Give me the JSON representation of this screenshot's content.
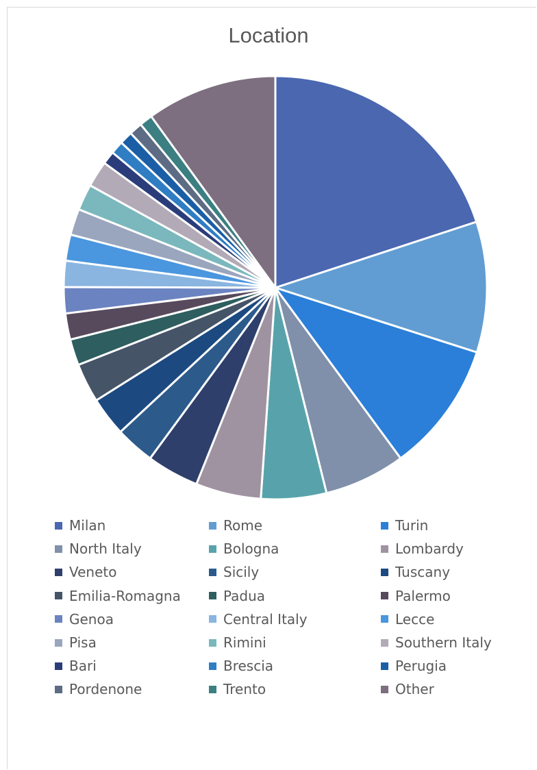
{
  "chart_data": {
    "type": "pie",
    "title": "Location",
    "legend_position": "bottom",
    "slices": [
      {
        "label": "Milan",
        "value": 20.0,
        "color": "#4a67b0"
      },
      {
        "label": "Rome",
        "value": 10.0,
        "color": "#619dd2"
      },
      {
        "label": "Turin",
        "value": 10.0,
        "color": "#2b7fd8"
      },
      {
        "label": "North Italy",
        "value": 6.2,
        "color": "#8090aa"
      },
      {
        "label": "Bologna",
        "value": 5.0,
        "color": "#58a3ab"
      },
      {
        "label": "Lombardy",
        "value": 5.0,
        "color": "#a093a1"
      },
      {
        "label": "Veneto",
        "value": 4.0,
        "color": "#2f3f6b"
      },
      {
        "label": "Sicily",
        "value": 3.0,
        "color": "#2c5b8b"
      },
      {
        "label": "Tuscany",
        "value": 3.0,
        "color": "#1c4a80"
      },
      {
        "label": "Emilia-Romagna",
        "value": 3.0,
        "color": "#465468"
      },
      {
        "label": "Padua",
        "value": 2.0,
        "color": "#2e5e60"
      },
      {
        "label": "Palermo",
        "value": 2.0,
        "color": "#574a5d"
      },
      {
        "label": "Genoa",
        "value": 2.0,
        "color": "#6b83c1"
      },
      {
        "label": "Central Italy",
        "value": 2.0,
        "color": "#89b5e0"
      },
      {
        "label": "Lecce",
        "value": 2.0,
        "color": "#4a96df"
      },
      {
        "label": "Pisa",
        "value": 2.0,
        "color": "#9aa6be"
      },
      {
        "label": "Rimini",
        "value": 2.0,
        "color": "#7ab8bd"
      },
      {
        "label": "Southern Italy",
        "value": 2.0,
        "color": "#b3aab7"
      },
      {
        "label": "Bari",
        "value": 1.0,
        "color": "#2a3d7a"
      },
      {
        "label": "Brescia",
        "value": 1.0,
        "color": "#2f7dc3"
      },
      {
        "label": "Perugia",
        "value": 1.0,
        "color": "#1a5fa6"
      },
      {
        "label": "Pordenone",
        "value": 1.0,
        "color": "#5d6b84"
      },
      {
        "label": "Trento",
        "value": 1.0,
        "color": "#3b7f82"
      },
      {
        "label": "Other",
        "value": 10.0,
        "color": "#7d6e80"
      }
    ]
  }
}
